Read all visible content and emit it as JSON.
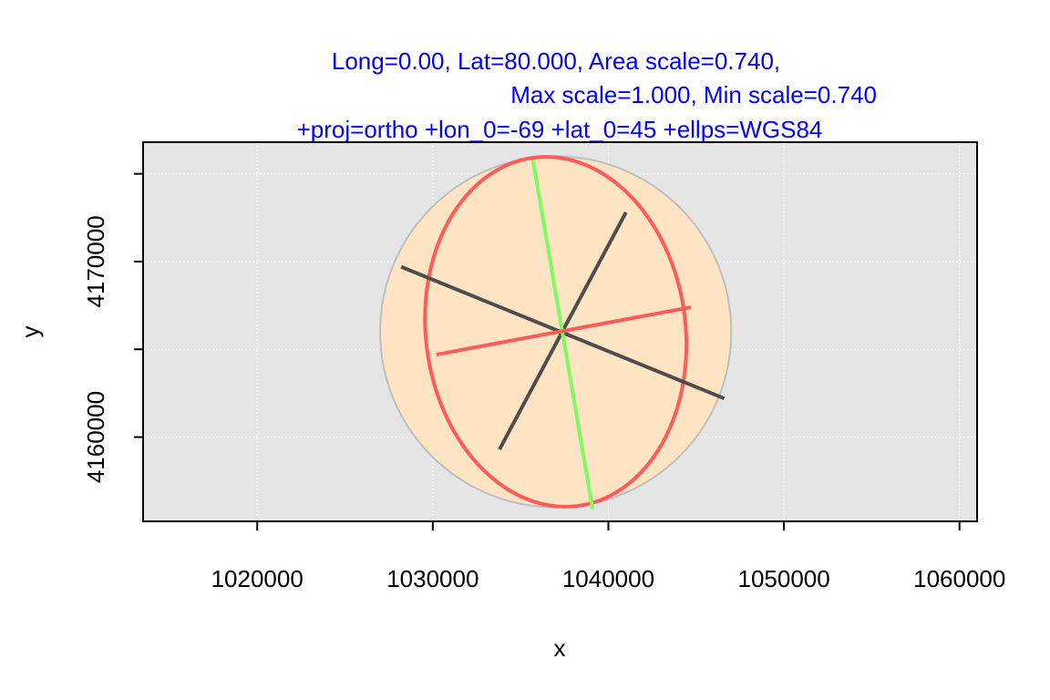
{
  "chart_data": {
    "type": "scatter",
    "title_lines": [
      "Long=0.00, Lat=80.000, Area scale=0.740,",
      "Max scale=1.000, Min scale=0.740",
      "+proj=ortho +lon_0=-69 +lat_0=45 +ellps=WGS84"
    ],
    "xlabel": "x",
    "ylabel": "y",
    "xlim": [
      1013500,
      1061000
    ],
    "ylim": [
      4155200,
      4176800
    ],
    "x_ticks": [
      1020000,
      1030000,
      1040000,
      1050000,
      1060000
    ],
    "x_tick_labels": [
      "1020000",
      "1030000",
      "1040000",
      "1050000",
      "1060000"
    ],
    "y_ticks": [
      4160000,
      4165000,
      4170000,
      4175000
    ],
    "y_tick_labels": [
      "4160000",
      "",
      "4170000",
      ""
    ],
    "grid": true,
    "center": [
      1037000,
      4166000
    ],
    "unit_circle": {
      "radius": 10000
    },
    "tissot_ellipse": {
      "semi_major": 10000,
      "semi_minor": 7400,
      "major_axis_angle_deg": 97
    },
    "green_axis": {
      "from": [
        1035700,
        4175800
      ],
      "to": [
        1039100,
        4155900
      ]
    },
    "red_axis": {
      "from": [
        1030200,
        4164700
      ],
      "to": [
        1044700,
        4167400
      ]
    },
    "dark_lines": [
      {
        "from": [
          1028200,
          4169700
        ],
        "to": [
          1046600,
          4162200
        ]
      },
      {
        "from": [
          1033800,
          4159300
        ],
        "to": [
          1041000,
          4172800
        ]
      }
    ],
    "colors": {
      "title": "#0000FF",
      "panel_bg": "#E5E5E5",
      "grid": "#FFFFFF",
      "circle_fill": "#FFE4C4",
      "circle_stroke": "#BEBEBE",
      "ellipse": "#FF5B5B",
      "green_axis": "#7CFC60",
      "red_axis": "#FF5B5B",
      "dark_lines": "#4D4D4D"
    }
  }
}
